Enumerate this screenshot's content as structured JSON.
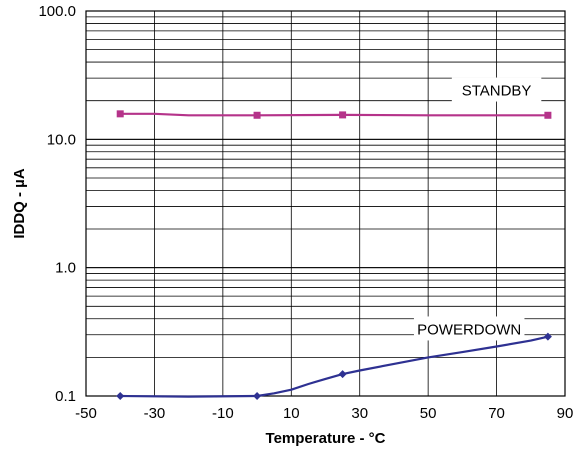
{
  "chart_data": {
    "type": "line",
    "xlabel": "Temperature - °C",
    "ylabel": "IDDQ - µA",
    "xlim": [
      -50,
      90
    ],
    "ylim": [
      0.1,
      100
    ],
    "yscale": "log",
    "grid": true,
    "x_ticks": [
      "-50",
      "-30",
      "-10",
      "10",
      "30",
      "50",
      "70",
      "90"
    ],
    "y_ticks": [
      "0.1",
      "1.0",
      "10.0",
      "100.0"
    ],
    "series": [
      {
        "name": "STANDBY",
        "color": "#b5338a",
        "marker": "square",
        "points": [
          {
            "x": -40,
            "y": 15.8
          },
          {
            "x": -30,
            "y": 15.8
          },
          {
            "x": -20,
            "y": 15.4
          },
          {
            "x": 0,
            "y": 15.4
          },
          {
            "x": 25,
            "y": 15.5
          },
          {
            "x": 50,
            "y": 15.4
          },
          {
            "x": 85,
            "y": 15.4
          }
        ],
        "markers_at": [
          -40,
          0,
          25,
          85
        ]
      },
      {
        "name": "POWERDOWN",
        "color": "#2e3192",
        "marker": "diamond",
        "points": [
          {
            "x": -40,
            "y": 0.1
          },
          {
            "x": -20,
            "y": 0.099
          },
          {
            "x": 0,
            "y": 0.1
          },
          {
            "x": 5,
            "y": 0.105
          },
          {
            "x": 10,
            "y": 0.112
          },
          {
            "x": 15,
            "y": 0.124
          },
          {
            "x": 20,
            "y": 0.136
          },
          {
            "x": 25,
            "y": 0.148
          },
          {
            "x": 30,
            "y": 0.158
          },
          {
            "x": 40,
            "y": 0.178
          },
          {
            "x": 50,
            "y": 0.2
          },
          {
            "x": 60,
            "y": 0.22
          },
          {
            "x": 70,
            "y": 0.243
          },
          {
            "x": 80,
            "y": 0.27
          },
          {
            "x": 85,
            "y": 0.29
          }
        ],
        "markers_at": [
          -40,
          0,
          25,
          85
        ]
      }
    ],
    "annotations": [
      {
        "text": "STANDBY",
        "x": 70,
        "y": 24,
        "series": "STANDBY"
      },
      {
        "text": "POWERDOWN",
        "x": 62,
        "y": 0.33,
        "series": "POWERDOWN"
      }
    ]
  }
}
